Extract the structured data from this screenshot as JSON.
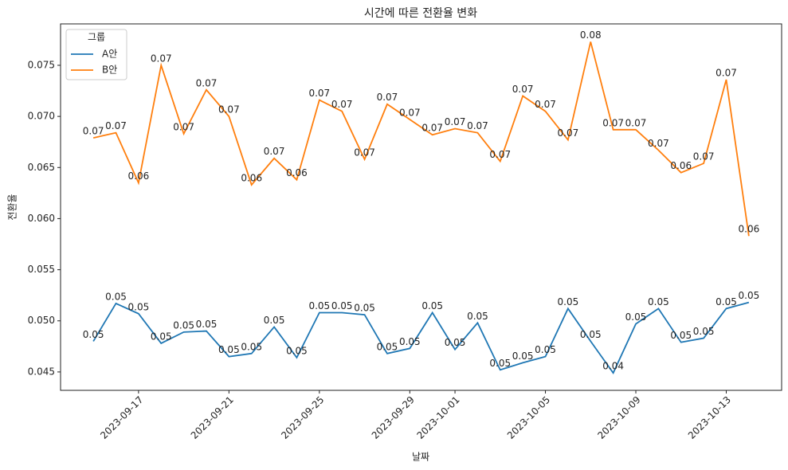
{
  "chart_data": {
    "type": "line",
    "title": "시간에 따른 전환율 변화",
    "x_label": "날짜",
    "y_label": "전환율",
    "legend_title": "그룹",
    "legend": "upper left",
    "x": [
      "2023-09-15",
      "2023-09-16",
      "2023-09-17",
      "2023-09-18",
      "2023-09-19",
      "2023-09-20",
      "2023-09-21",
      "2023-09-22",
      "2023-09-23",
      "2023-09-24",
      "2023-09-25",
      "2023-09-26",
      "2023-09-27",
      "2023-09-28",
      "2023-09-29",
      "2023-09-30",
      "2023-10-01",
      "2023-10-02",
      "2023-10-03",
      "2023-10-04",
      "2023-10-05",
      "2023-10-06",
      "2023-10-07",
      "2023-10-08",
      "2023-10-09",
      "2023-10-10",
      "2023-10-11",
      "2023-10-12",
      "2023-10-13",
      "2023-10-14"
    ],
    "series": [
      {
        "name": "A안",
        "color": "#1f77b4",
        "values": [
          0.048,
          0.0517,
          0.0507,
          0.0478,
          0.0489,
          0.049,
          0.0465,
          0.0468,
          0.0494,
          0.0464,
          0.0508,
          0.0508,
          0.0506,
          0.0468,
          0.0473,
          0.0508,
          0.0472,
          0.0498,
          0.0452,
          0.0459,
          0.0465,
          0.0512,
          0.048,
          0.0449,
          0.0497,
          0.0512,
          0.0479,
          0.0483,
          0.0512,
          0.0518
        ],
        "value_labels": [
          "0.05",
          "0.05",
          "0.05",
          "0.05",
          "0.05",
          "0.05",
          "0.05",
          "0.05",
          "0.05",
          "0.05",
          "0.05",
          "0.05",
          "0.05",
          "0.05",
          "0.05",
          "0.05",
          "0.05",
          "0.05",
          "0.05",
          "0.05",
          "0.05",
          "0.05",
          "0.05",
          "0.04",
          "0.05",
          "0.05",
          "0.05",
          "0.05",
          "0.05",
          "0.05"
        ]
      },
      {
        "name": "B안",
        "color": "#ff7f0e",
        "values": [
          0.0679,
          0.0684,
          0.0635,
          0.075,
          0.0683,
          0.0726,
          0.07,
          0.0633,
          0.0659,
          0.0638,
          0.0716,
          0.0705,
          0.0658,
          0.0712,
          0.0697,
          0.0682,
          0.0688,
          0.0684,
          0.0656,
          0.072,
          0.0705,
          0.0677,
          0.0773,
          0.0687,
          0.0687,
          0.0667,
          0.0645,
          0.0654,
          0.0736,
          0.0583
        ],
        "value_labels": [
          "0.07",
          "0.07",
          "0.06",
          "0.07",
          "0.07",
          "0.07",
          "0.07",
          "0.06",
          "0.07",
          "0.06",
          "0.07",
          "0.07",
          "0.07",
          "0.07",
          "0.07",
          "0.07",
          "0.07",
          "0.07",
          "0.07",
          "0.07",
          "0.07",
          "0.07",
          "0.08",
          "0.07",
          "0.07",
          "0.07",
          "0.06",
          "0.07",
          "0.07",
          "0.06"
        ]
      }
    ],
    "xlim": [
      "2023-09-13T13:12Z",
      "2023-10-15T10:48Z"
    ],
    "xticks": [
      "2023-09-17",
      "2023-09-21",
      "2023-09-25",
      "2023-09-29",
      "2023-10-01",
      "2023-10-05",
      "2023-10-09",
      "2023-10-13"
    ],
    "ylim": [
      0.0432,
      0.07905
    ],
    "yticks": [
      0.045,
      {
        "value": 0.05,
        "label": "0.050"
      },
      0.055,
      {
        "value": 0.06,
        "label": "0.060"
      },
      0.065,
      {
        "value": 0.07,
        "label": "0.070"
      },
      0.075
    ]
  }
}
